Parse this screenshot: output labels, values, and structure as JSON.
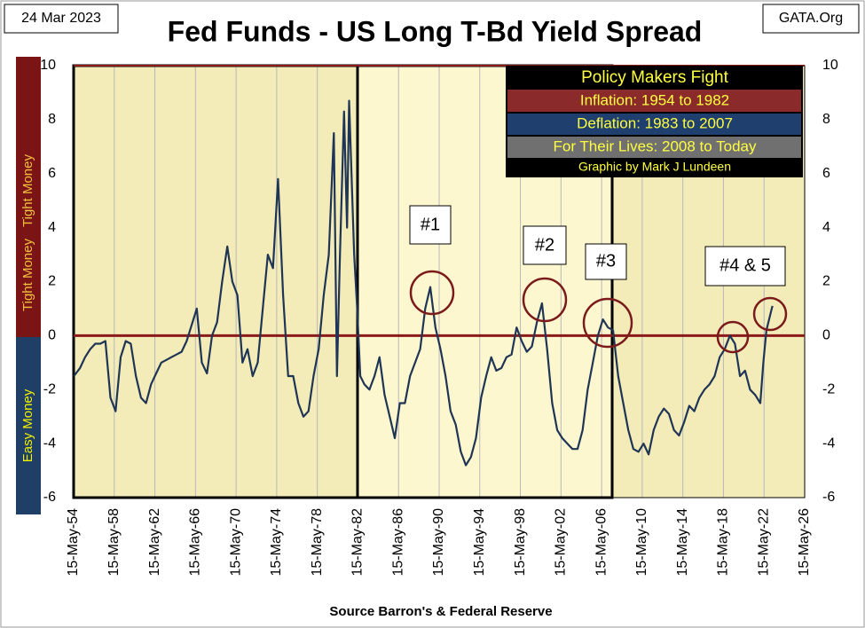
{
  "chart_data": {
    "type": "line",
    "title": "Fed Funds - US Long T-Bd Yield Spread",
    "date": "24 Mar 2023",
    "source_site": "GATA.Org",
    "xlabel": "Source Barron's & Federal Reserve",
    "side_labels": {
      "tight": "Tight Money",
      "tight2": "Tight Money",
      "easy": "Easy Money"
    },
    "legend_box": [
      "Policy Makers Fight",
      "Inflation: 1954 to 1982",
      "Deflation: 1983 to 2007",
      "For Their Lives: 2008 to Today",
      "Graphic by Mark J Lundeen"
    ],
    "annotations": [
      "#1",
      "#2",
      "#3",
      "#4 & 5"
    ],
    "xlim": [
      1954.37,
      2026.37
    ],
    "xticks": [
      {
        "value": 1954.37,
        "label": "15-May-54"
      },
      {
        "value": 1958.37,
        "label": "15-May-58"
      },
      {
        "value": 1962.37,
        "label": "15-May-62"
      },
      {
        "value": 1966.37,
        "label": "15-May-66"
      },
      {
        "value": 1970.37,
        "label": "15-May-70"
      },
      {
        "value": 1974.37,
        "label": "15-May-74"
      },
      {
        "value": 1978.37,
        "label": "15-May-78"
      },
      {
        "value": 1982.37,
        "label": "15-May-82"
      },
      {
        "value": 1986.37,
        "label": "15-May-86"
      },
      {
        "value": 1990.37,
        "label": "15-May-90"
      },
      {
        "value": 1994.37,
        "label": "15-May-94"
      },
      {
        "value": 1998.37,
        "label": "15-May-98"
      },
      {
        "value": 2002.37,
        "label": "15-May-02"
      },
      {
        "value": 2006.37,
        "label": "15-May-06"
      },
      {
        "value": 2010.37,
        "label": "15-May-10"
      },
      {
        "value": 2014.37,
        "label": "15-May-14"
      },
      {
        "value": 2018.37,
        "label": "15-May-18"
      },
      {
        "value": 2022.37,
        "label": "15-May-22"
      },
      {
        "value": 2026.37,
        "label": "15-May-26"
      }
    ],
    "ylim": [
      -6,
      10
    ],
    "yticks": [
      -6,
      -4,
      -2,
      0,
      2,
      4,
      6,
      8,
      10
    ],
    "x": [
      1954.4,
      1955,
      1955.5,
      1956,
      1956.5,
      1957,
      1957.5,
      1958,
      1958.5,
      1959,
      1959.5,
      1960,
      1960.5,
      1961,
      1961.5,
      1962,
      1962.5,
      1963,
      1963.5,
      1964,
      1964.5,
      1965,
      1965.5,
      1966,
      1966.5,
      1967,
      1967.5,
      1968,
      1968.5,
      1969,
      1969.5,
      1970,
      1970.5,
      1971,
      1971.5,
      1972,
      1972.5,
      1973,
      1973.5,
      1974,
      1974.5,
      1975,
      1975.5,
      1976,
      1976.5,
      1977,
      1977.5,
      1978,
      1978.5,
      1979,
      1979.5,
      1980,
      1980.3,
      1980.6,
      1981,
      1981.3,
      1981.5,
      1982,
      1982.3,
      1982.6,
      1983,
      1983.5,
      1984,
      1984.5,
      1985,
      1985.5,
      1986,
      1986.5,
      1987,
      1987.5,
      1988,
      1988.5,
      1989,
      1989.5,
      1990,
      1990.5,
      1991,
      1991.5,
      1992,
      1992.5,
      1993,
      1993.5,
      1994,
      1994.5,
      1995,
      1995.5,
      1996,
      1996.5,
      1997,
      1997.5,
      1998,
      1998.5,
      1999,
      1999.5,
      2000,
      2000.5,
      2001,
      2001.5,
      2002,
      2002.5,
      2003,
      2003.5,
      2004,
      2004.5,
      2005,
      2005.5,
      2006,
      2006.5,
      2007,
      2007.5,
      2008,
      2008.5,
      2009,
      2009.5,
      2010,
      2010.5,
      2011,
      2011.5,
      2012,
      2012.5,
      2013,
      2013.5,
      2014,
      2014.5,
      2015,
      2015.5,
      2016,
      2016.5,
      2017,
      2017.5,
      2018,
      2018.5,
      2019,
      2019.5,
      2020,
      2020.5,
      2021,
      2021.5,
      2022,
      2022.3,
      2022.6,
      2023,
      2023.2
    ],
    "series": [
      {
        "name": "Spread",
        "color": "#1f3556",
        "values": [
          -1.5,
          -1.2,
          -0.8,
          -0.5,
          -0.3,
          -0.3,
          -0.2,
          -2.3,
          -2.8,
          -0.8,
          -0.2,
          -0.3,
          -1.5,
          -2.3,
          -2.5,
          -1.8,
          -1.4,
          -1.0,
          -0.9,
          -0.8,
          -0.7,
          -0.6,
          -0.2,
          0.4,
          1.0,
          -1.0,
          -1.4,
          0.0,
          0.5,
          2.0,
          3.3,
          2.0,
          1.5,
          -1.0,
          -0.5,
          -1.5,
          -1.0,
          1.0,
          3.0,
          2.5,
          5.8,
          1.5,
          -1.5,
          -1.5,
          -2.5,
          -3.0,
          -2.8,
          -1.5,
          -0.5,
          1.5,
          3.0,
          7.5,
          -1.5,
          3,
          8.3,
          4,
          8.7,
          3,
          1,
          -1.5,
          -1.8,
          -2.0,
          -1.5,
          -0.8,
          -2.2,
          -3.0,
          -3.8,
          -2.5,
          -2.5,
          -1.5,
          -1.0,
          -0.5,
          1.0,
          1.8,
          0.3,
          -0.5,
          -1.5,
          -2.8,
          -3.3,
          -4.3,
          -4.8,
          -4.5,
          -3.8,
          -2.3,
          -1.5,
          -0.8,
          -1.3,
          -1.2,
          -0.8,
          -0.7,
          0.3,
          -0.2,
          -0.6,
          -0.4,
          0.5,
          1.2,
          -0.5,
          -2.5,
          -3.5,
          -3.8,
          -4.0,
          -4.2,
          -4.2,
          -3.5,
          -2.0,
          -1.0,
          0.0,
          0.6,
          0.3,
          0.2,
          -1.5,
          -2.5,
          -3.5,
          -4.2,
          -4.3,
          -4.0,
          -4.4,
          -3.5,
          -3.0,
          -2.7,
          -2.9,
          -3.5,
          -3.7,
          -3.2,
          -2.6,
          -2.8,
          -2.3,
          -2.0,
          -1.8,
          -1.5,
          -0.8,
          -0.5,
          0.0,
          -0.3,
          -1.5,
          -1.3,
          -2.0,
          -2.2,
          -2.5,
          -1.0,
          0.2,
          0.8,
          1.1
        ]
      }
    ],
    "zero_line_color": "#8b1a1a"
  }
}
